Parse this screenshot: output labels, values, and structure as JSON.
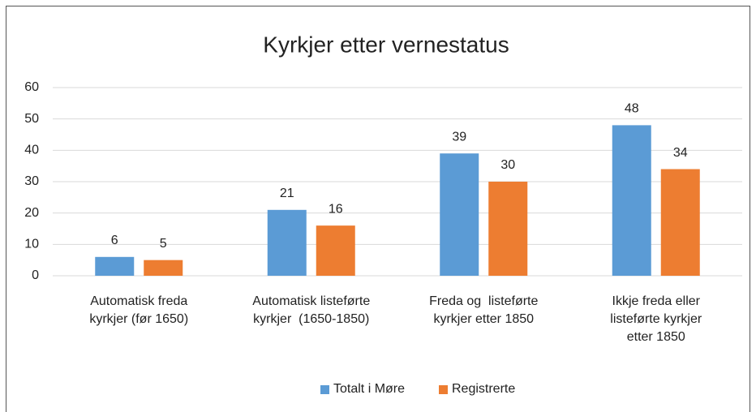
{
  "chart_data": {
    "type": "bar",
    "title": "Kyrkjer etter vernestatus",
    "categories": [
      [
        "Automatisk freda",
        "kyrkjer (før 1650)"
      ],
      [
        "Automatisk listeførte",
        "kyrkjer  (1650-1850)"
      ],
      [
        "Freda og  listeførte",
        "kyrkjer etter 1850"
      ],
      [
        "Ikkje freda eller",
        "listeførte kyrkjer",
        "etter 1850"
      ]
    ],
    "series": [
      {
        "name": "Totalt i Møre",
        "color": "#5b9bd5",
        "values": [
          6,
          21,
          39,
          48
        ]
      },
      {
        "name": "Registrerte",
        "color": "#ed7d31",
        "values": [
          5,
          16,
          30,
          34
        ]
      }
    ],
    "ylim": [
      0,
      60
    ],
    "yticks": [
      0,
      10,
      20,
      30,
      40,
      50,
      60
    ],
    "grid": true,
    "legend": "bottom"
  }
}
